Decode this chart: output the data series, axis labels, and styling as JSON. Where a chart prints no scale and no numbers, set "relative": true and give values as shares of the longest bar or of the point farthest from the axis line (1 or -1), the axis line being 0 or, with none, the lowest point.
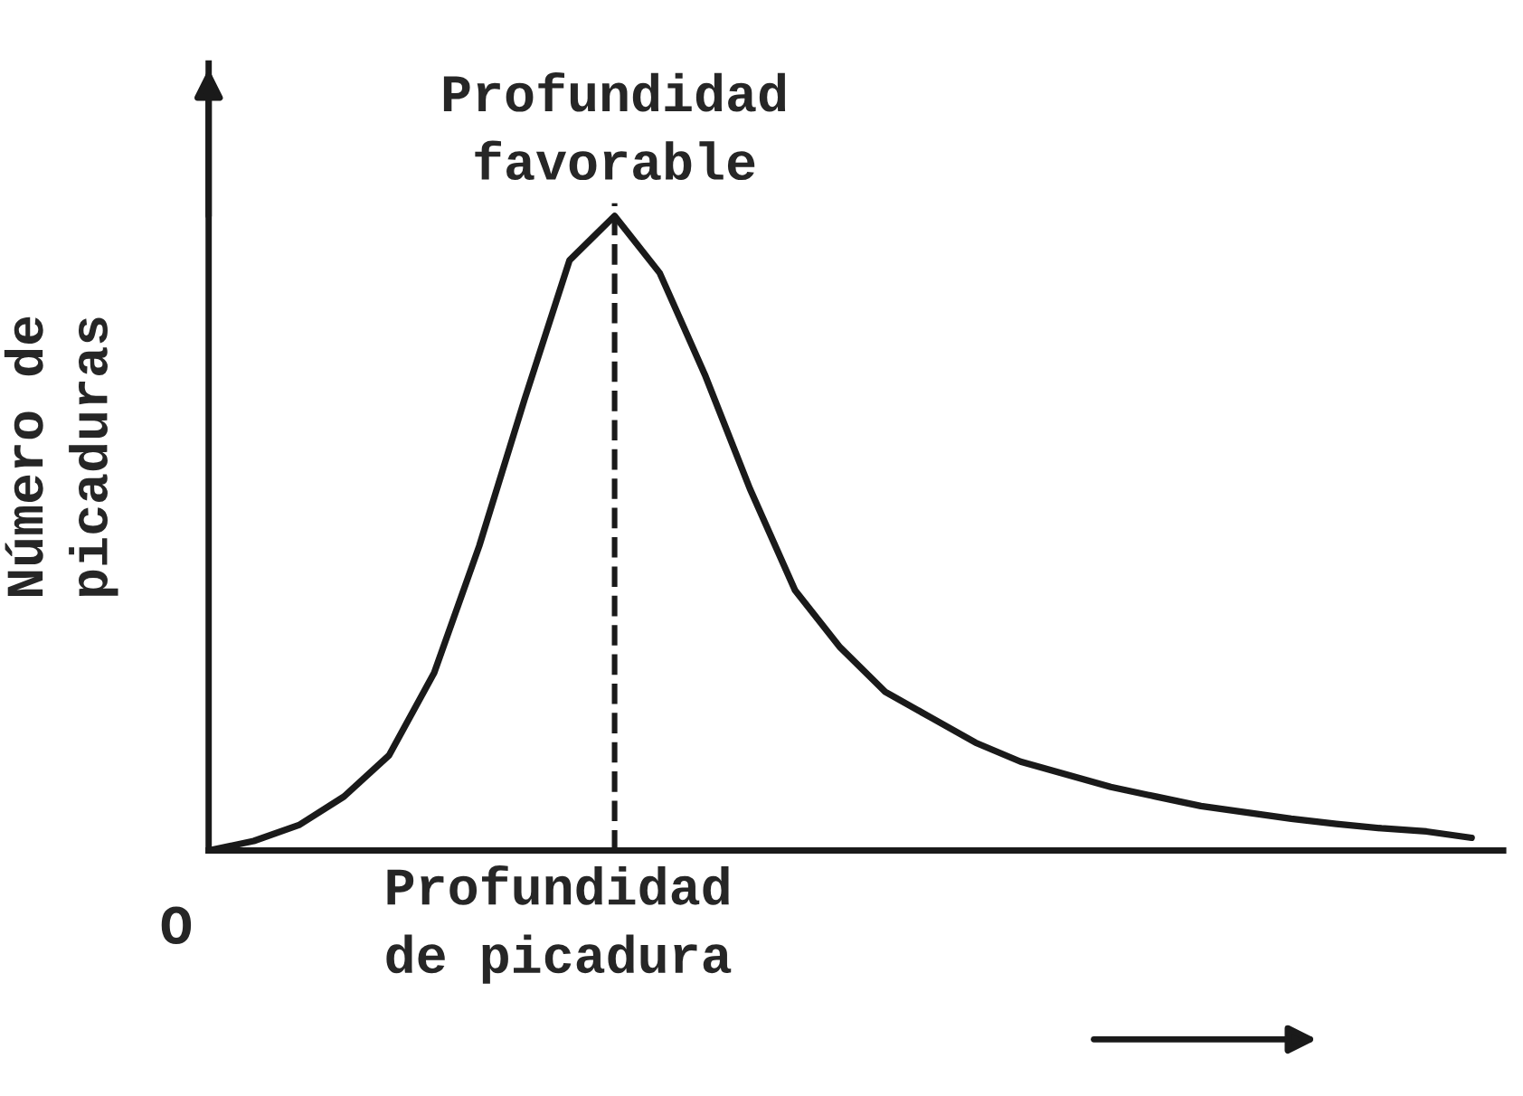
{
  "chart_data": {
    "type": "line",
    "relative": true,
    "xlabel": "Profundidad\nde picadura",
    "ylabel": "Número de\npicaduras",
    "categories": [
      null,
      null,
      null,
      null,
      null,
      null,
      null,
      null,
      null,
      null,
      null,
      null,
      null,
      null,
      null,
      null,
      null,
      null,
      null,
      null,
      null,
      null,
      null,
      null,
      null,
      null,
      null,
      null,
      null
    ],
    "series": [
      {
        "color": "#1a1a1a",
        "values": [
          0,
          0.015,
          0.04,
          0.085,
          0.15,
          0.28,
          0.48,
          0.71,
          0.93,
          1.0,
          0.91,
          0.75,
          0.57,
          0.41,
          0.32,
          0.25,
          0.21,
          0.17,
          0.14,
          0.12,
          0.1,
          0.085,
          0.07,
          0.06,
          0.05,
          0.042,
          0.035,
          0.03,
          0.02
        ]
      }
    ],
    "annotations": [
      "Profundidad\nfavorable",
      "O"
    ],
    "line_style": "solid",
    "marker": "none"
  }
}
